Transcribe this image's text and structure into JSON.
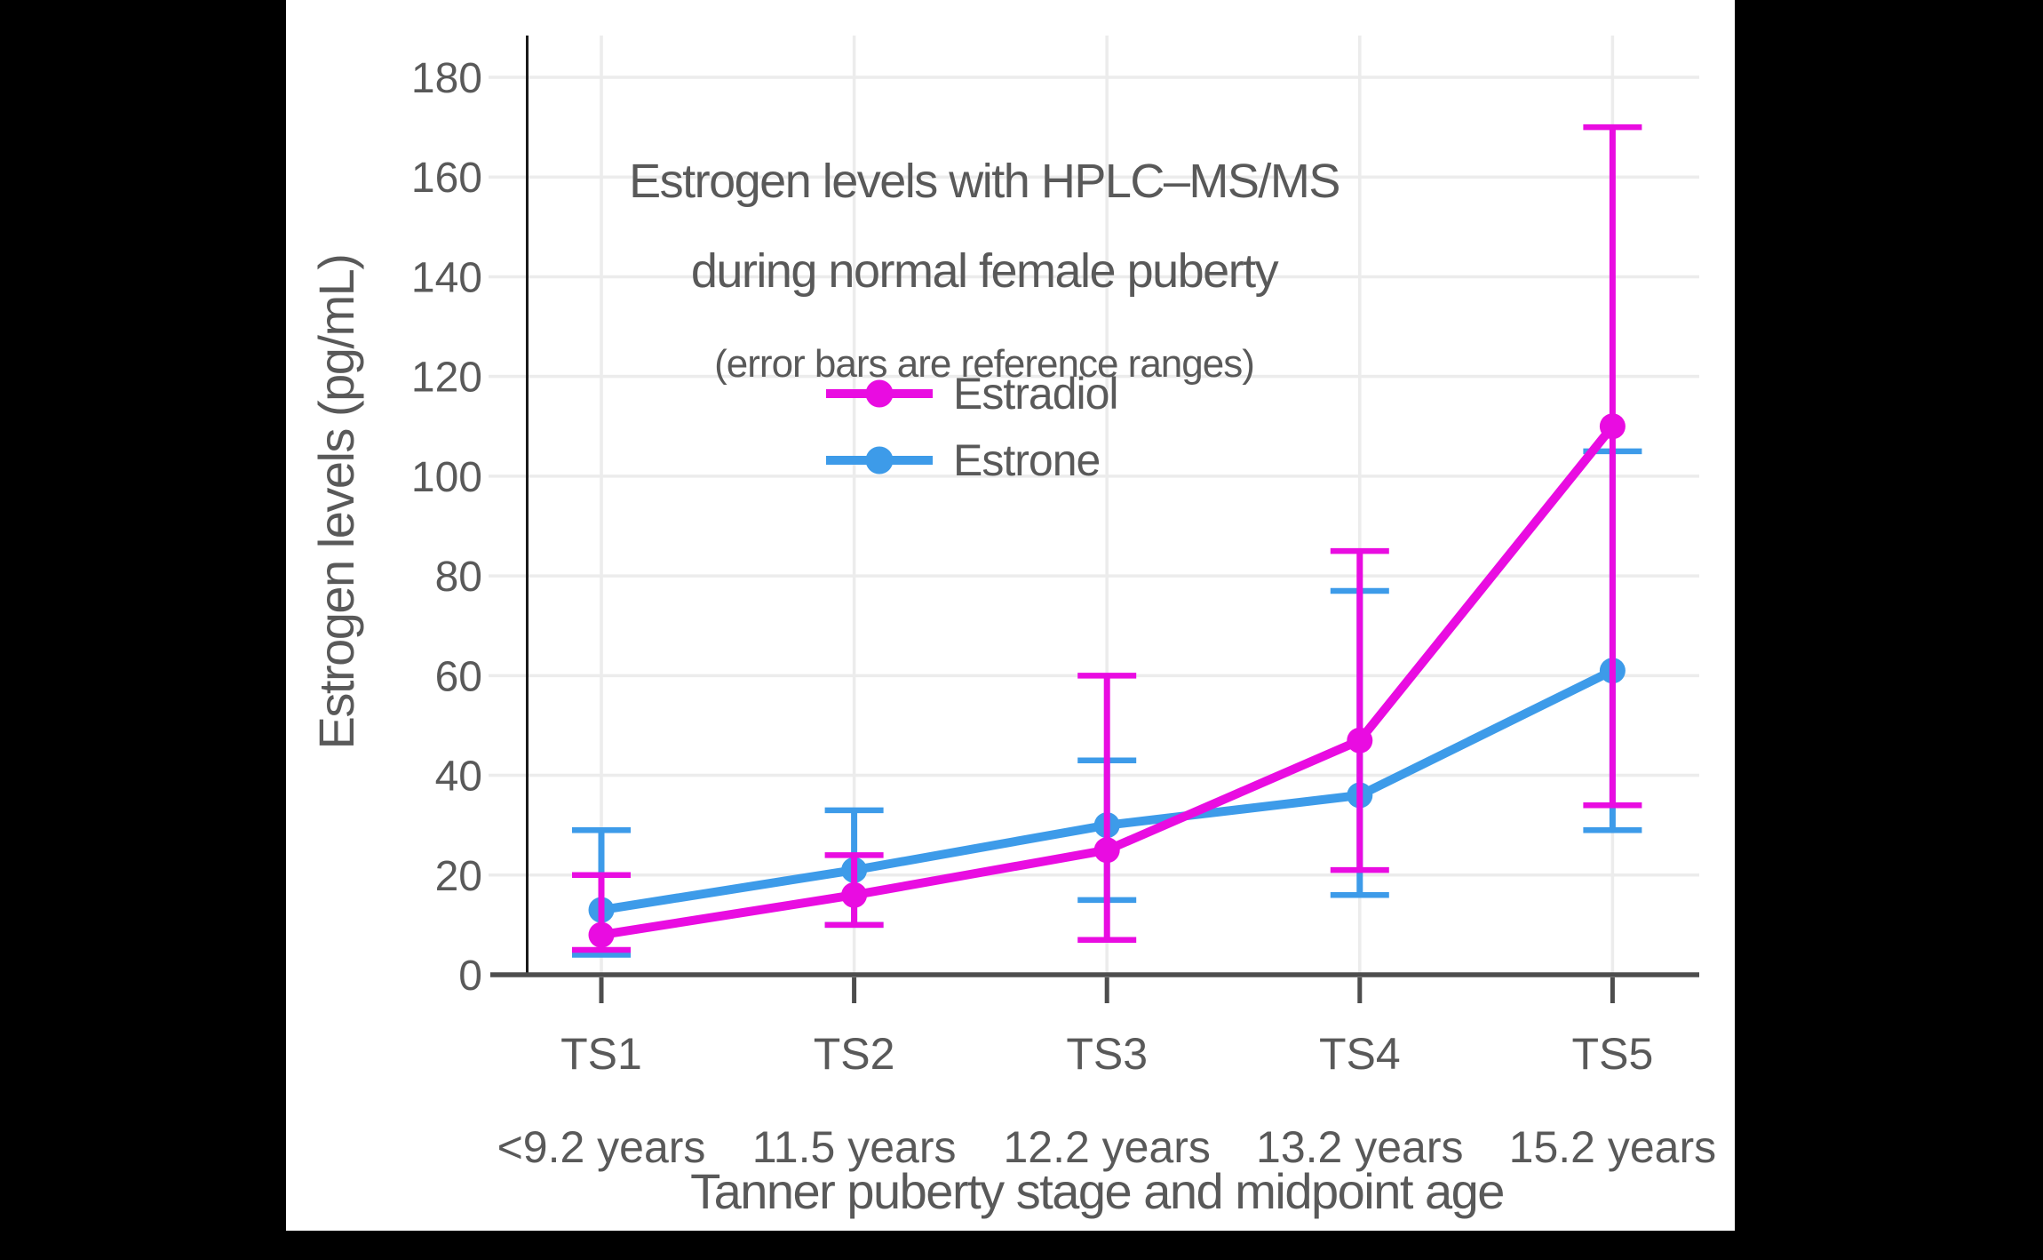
{
  "chart_data": {
    "type": "line",
    "title_lines": [
      "Estrogen levels with HPLC–MS/MS",
      "during normal female puberty"
    ],
    "subtitle": "(error bars are reference ranges)",
    "xlabel": "Tanner puberty stage and midpoint age",
    "ylabel": "Estrogen levels (pg/mL)",
    "categories": [
      "TS1",
      "TS2",
      "TS3",
      "TS4",
      "TS5"
    ],
    "category_sublabels": [
      "<9.2 years",
      "11.5 years",
      "12.2 years",
      "13.2 years",
      "15.2 years"
    ],
    "yticks": [
      0,
      20,
      40,
      60,
      80,
      100,
      120,
      140,
      160,
      180
    ],
    "ylim": [
      0,
      180
    ],
    "grid": true,
    "legend_position": "upper-center-inside",
    "error_bar_meaning": "reference ranges",
    "series": [
      {
        "name": "Estradiol",
        "color": "#E90CE1",
        "values": [
          8,
          16,
          25,
          47,
          110
        ],
        "range_low": [
          5,
          10,
          7,
          21,
          34
        ],
        "range_high": [
          20,
          24,
          60,
          85,
          170
        ]
      },
      {
        "name": "Estrone",
        "color": "#3D9BE9",
        "values": [
          13,
          21,
          30,
          36,
          61
        ],
        "range_low": [
          4,
          10,
          15,
          16,
          29
        ],
        "range_high": [
          29,
          33,
          43,
          77,
          105
        ]
      }
    ]
  },
  "colors": {
    "background_frame": "#000000",
    "panel": "#FFFFFF",
    "gridline": "#ECECEC",
    "axis": "#4D4D4D",
    "spine": "#1A1A1A",
    "text": "#595959",
    "estradiol": "#E90CE1",
    "estrone": "#3D9BE9"
  }
}
